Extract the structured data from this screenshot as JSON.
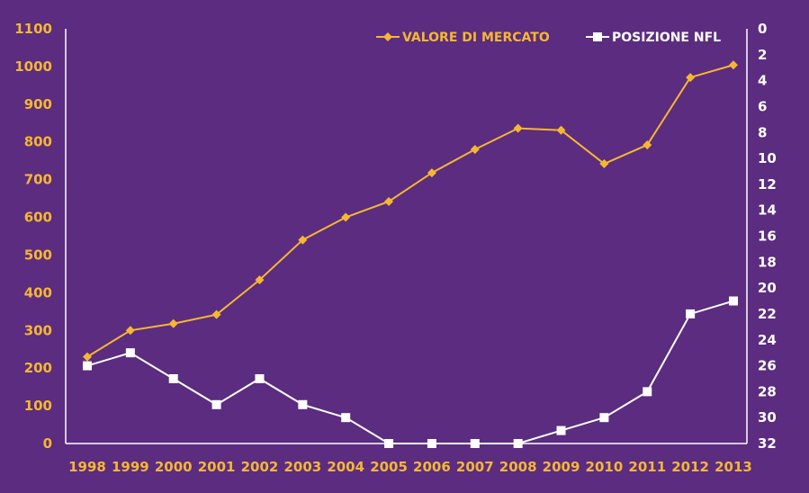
{
  "chart_data": {
    "type": "line",
    "title": "",
    "xlabel": "",
    "ylabel": "",
    "x": [
      "1998",
      "1999",
      "2000",
      "2001",
      "2002",
      "2003",
      "2004",
      "2005",
      "2006",
      "2007",
      "2008",
      "2009",
      "2010",
      "2011",
      "2012",
      "2013"
    ],
    "series": [
      {
        "name": "VALORE DI MERCATO",
        "axis": "left",
        "color": "#f5b731",
        "marker": "diamond",
        "values": [
          230,
          300,
          318,
          342,
          434,
          540,
          600,
          642,
          718,
          780,
          836,
          831,
          742,
          792,
          971,
          1004
        ]
      },
      {
        "name": "POSIZIONE NFL",
        "axis": "right",
        "color": "#ffffff",
        "marker": "square",
        "values": [
          26,
          25,
          27,
          29,
          27,
          29,
          30,
          32,
          32,
          32,
          32,
          31,
          30,
          28,
          22,
          21
        ]
      }
    ],
    "y_left": {
      "min": 0,
      "max": 1100,
      "ticks": [
        0,
        100,
        200,
        300,
        400,
        500,
        600,
        700,
        800,
        900,
        1000,
        1100
      ]
    },
    "y_right": {
      "min": 0,
      "max": 32,
      "reversed": true,
      "ticks": [
        0,
        2,
        4,
        6,
        8,
        10,
        12,
        14,
        16,
        18,
        20,
        22,
        24,
        26,
        28,
        30,
        32
      ]
    },
    "legend_position": "top-right",
    "grid": false
  }
}
